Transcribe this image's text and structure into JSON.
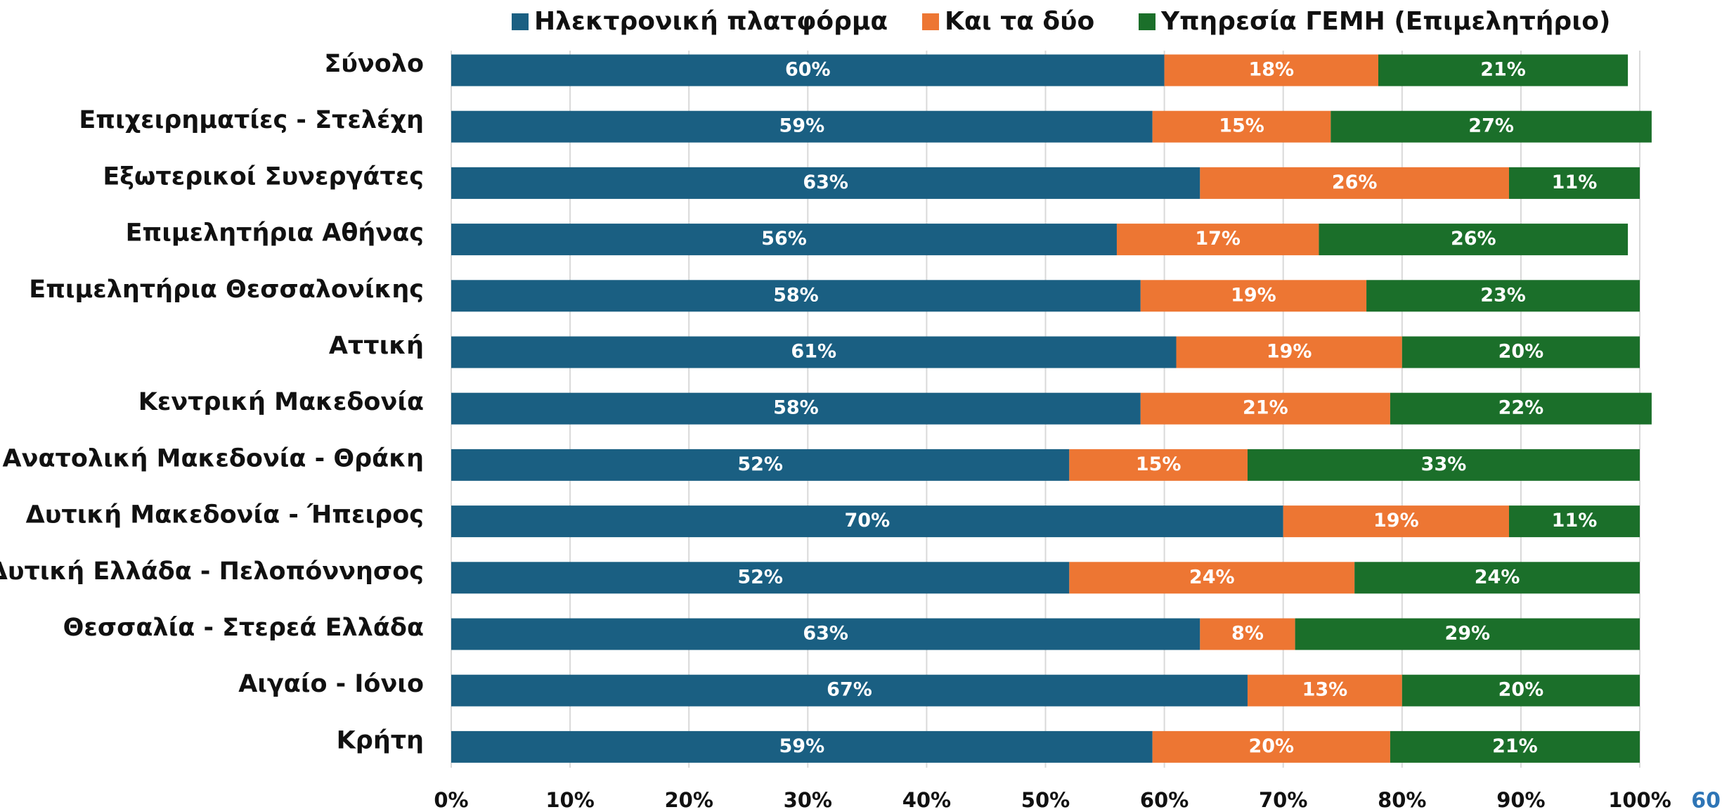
{
  "chart_data": {
    "type": "stacked_barh",
    "categories": [
      "Σύνολο",
      "Επιχειρηματίες - Στελέχη",
      "Εξωτερικοί Συνεργάτες",
      "Επιμελητήρια  Αθήνας",
      "Επιμελητήρια  Θεσσαλονίκης",
      "Αττική",
      "Κεντρική Μακεδονία",
      "Ανατολική Μακεδονία - Θράκη",
      "Δυτική Μακεδονία - Ήπειρος",
      "Δυτική Ελλάδα - Πελοπόννησος",
      "Θεσσαλία - Στερεά Ελλάδα",
      "Αιγαίο - Ιόνιο",
      "Κρήτη"
    ],
    "series": [
      {
        "name": "Ηλεκτρονική πλατφόρμα",
        "color": "#1a5f82",
        "values": [
          60,
          59,
          63,
          56,
          58,
          61,
          58,
          52,
          70,
          52,
          63,
          67,
          59
        ],
        "value_labels": [
          "60%",
          "59%",
          "63%",
          "56%",
          "58%",
          "61%",
          "58%",
          "52%",
          "70%",
          "52%",
          "63%",
          "67%",
          "59%"
        ]
      },
      {
        "name": "Και τα δύο",
        "color": "#ed7633",
        "values": [
          18,
          15,
          26,
          17,
          19,
          19,
          21,
          15,
          19,
          24,
          8,
          13,
          20
        ],
        "value_labels": [
          "18%",
          "15%",
          "26%",
          "17%",
          "19%",
          "19%",
          "21%",
          "15%",
          "19%",
          "24%",
          "8%",
          "13%",
          "20%"
        ]
      },
      {
        "name": "Υπηρεσία ΓΕΜΗ (Επιμελητήριο)",
        "color": "#1b6f2a",
        "values": [
          21,
          27,
          11,
          26,
          23,
          20,
          22,
          33,
          11,
          24,
          29,
          20,
          21
        ],
        "value_labels": [
          "21%",
          "27%",
          "11%",
          "26%",
          "23%",
          "20%",
          "22%",
          "33%",
          "11%",
          "24%",
          "29%",
          "20%",
          "21%"
        ]
      }
    ],
    "xlim": [
      0,
      100
    ],
    "xticks": [
      {
        "value": 0,
        "label": "0%"
      },
      {
        "value": 10,
        "label": "10%"
      },
      {
        "value": 20,
        "label": "20%"
      },
      {
        "value": 30,
        "label": "30%"
      },
      {
        "value": 40,
        "label": "40%"
      },
      {
        "value": 50,
        "label": "50%"
      },
      {
        "value": 60,
        "label": "60%"
      },
      {
        "value": 70,
        "label": "70%"
      },
      {
        "value": 80,
        "label": "80%"
      },
      {
        "value": 90,
        "label": "90%"
      },
      {
        "value": 100,
        "label": "100%"
      }
    ],
    "grid": true,
    "legend": "top"
  },
  "page_number": "60"
}
